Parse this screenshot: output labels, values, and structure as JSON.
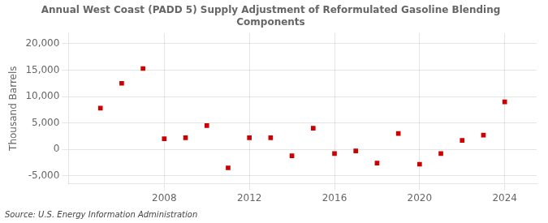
{
  "chart_data": {
    "type": "scatter",
    "title": "Annual West Coast (PADD 5) Supply Adjustment of Reformulated Gasoline Blending\nComponents",
    "ylabel": "Thousand Barrels",
    "source": "Source: U.S. Energy Information Administration",
    "x": [
      2005,
      2006,
      2007,
      2008,
      2009,
      2010,
      2011,
      2012,
      2013,
      2014,
      2015,
      2016,
      2017,
      2018,
      2019,
      2020,
      2021,
      2022,
      2023,
      2024
    ],
    "values": [
      7800,
      12500,
      15300,
      2000,
      2200,
      4500,
      -3500,
      2200,
      2200,
      -1200,
      4000,
      -800,
      -300,
      -2600,
      3000,
      -2800,
      -800,
      1700,
      2700,
      9000
    ],
    "color": "#cc0000",
    "marker": "square",
    "xlim": [
      2003.5,
      2025.5
    ],
    "xticks": [
      2008,
      2012,
      2016,
      2020,
      2024
    ],
    "ylim": [
      -6500,
      22000
    ],
    "yticks": [
      {
        "value": -5000,
        "label": "-5,000"
      },
      0,
      {
        "value": 5000,
        "label": "5,000"
      },
      {
        "value": 10000,
        "label": "10,000"
      },
      {
        "value": 15000,
        "label": "15,000"
      },
      {
        "value": 20000,
        "label": "20,000"
      }
    ],
    "grid": true
  }
}
